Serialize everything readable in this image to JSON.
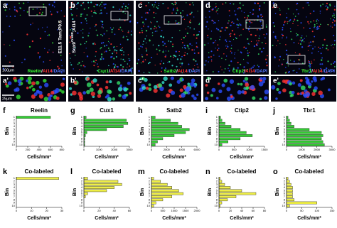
{
  "images": [
    {
      "label": "a",
      "zoom_label": "a'",
      "stain": [
        "Reelin",
        "/",
        "Ai14",
        "/DAPI"
      ],
      "stain_colors": [
        "#33ff33",
        "#ffffff",
        "#ff3333",
        "#5577ff"
      ],
      "dot_colors": [
        "#2a4dff",
        "#2a4dff",
        "#33dd33",
        "#ff3333"
      ]
    },
    {
      "label": "b",
      "zoom_label": "b'",
      "stain": [
        "Cux1",
        "/",
        "Ai14",
        "/DAPI"
      ],
      "stain_colors": [
        "#33ff33",
        "#ffffff",
        "#ff3333",
        "#5577ff"
      ],
      "dot_colors": [
        "#2a4dff",
        "#33dd66",
        "#33ddcc",
        "#ff3333"
      ]
    },
    {
      "label": "c",
      "zoom_label": "c'",
      "stain": [
        "Satb2",
        "/",
        "Ai14",
        "/DAPI"
      ],
      "stain_colors": [
        "#33ff33",
        "#ffffff",
        "#ff3333",
        "#5577ff"
      ],
      "dot_colors": [
        "#2a4dff",
        "#33dd66",
        "#33ddcc",
        "#ff3333"
      ]
    },
    {
      "label": "d",
      "zoom_label": "d'",
      "stain": [
        "Ctip2",
        "/",
        "Ai14",
        "/DAPI"
      ],
      "stain_colors": [
        "#33ff33",
        "#ffffff",
        "#ff3333",
        "#5577ff"
      ],
      "dot_colors": [
        "#2a4dff",
        "#2a4dff",
        "#33dd66",
        "#ff3333"
      ]
    },
    {
      "label": "e",
      "zoom_label": "e'",
      "stain": [
        "Tbr1",
        "/",
        "Ai14",
        "/DAPI"
      ],
      "stain_colors": [
        "#33ff33",
        "#ffffff",
        "#ff3333",
        "#5577ff"
      ],
      "dot_colors": [
        "#2a4dff",
        "#2a4dff",
        "#33dd66",
        "#ff3333"
      ]
    }
  ],
  "side_label_age": "E11.5 Tam;P0.5",
  "side_label_line": [
    "Sox9",
    "CreER",
    ";Ai14"
  ],
  "scale_bar_top": "100µm",
  "scale_bar_zoom": "25µm",
  "chart_data": [
    {
      "type": "bar",
      "panel_label": "f",
      "title": "Reelin",
      "xlabel": "Cells/mm²",
      "ylabel": "Bin",
      "color": "#33cc33",
      "categories": [
        "1",
        "2",
        "3",
        "4",
        "5",
        "6",
        "7",
        "8",
        "9",
        "10"
      ],
      "values": [
        600,
        0,
        0,
        0,
        0,
        0,
        0,
        0,
        0,
        0
      ],
      "xlim": [
        0,
        800
      ],
      "xticks": [
        0,
        200,
        400,
        600,
        800
      ]
    },
    {
      "type": "bar",
      "panel_label": "g",
      "title": "Cux1",
      "xlabel": "Cells/mm²",
      "ylabel": "Bin",
      "color": "#33cc33",
      "categories": [
        "1",
        "2",
        "3",
        "4",
        "5",
        "6",
        "7",
        "8",
        "9",
        "10"
      ],
      "values": [
        150,
        2800,
        2900,
        2600,
        1500,
        200,
        100,
        50,
        50,
        50
      ],
      "xlim": [
        0,
        3000
      ],
      "xticks": [
        0,
        1000,
        2000,
        3000
      ]
    },
    {
      "type": "bar",
      "panel_label": "h",
      "title": "Satb2",
      "xlabel": "Cells/mm²",
      "ylabel": "Bin",
      "color": "#33cc33",
      "categories": [
        "1",
        "2",
        "3",
        "4",
        "5",
        "6",
        "7",
        "8",
        "9",
        "10"
      ],
      "values": [
        500,
        2500,
        3500,
        4000,
        5000,
        4500,
        3000,
        1500,
        800,
        500
      ],
      "xlim": [
        0,
        6000
      ],
      "xticks": [
        0,
        2000,
        4000,
        6000
      ]
    },
    {
      "type": "bar",
      "panel_label": "i",
      "title": "Ctip2",
      "xlabel": "Cells/mm²",
      "ylabel": "Bin",
      "color": "#33cc33",
      "categories": [
        "1",
        "2",
        "3",
        "4",
        "5",
        "6",
        "7",
        "8",
        "9",
        "10"
      ],
      "values": [
        50,
        100,
        200,
        400,
        700,
        900,
        1100,
        700,
        300,
        100
      ],
      "xlim": [
        0,
        1500
      ],
      "xticks": [
        0,
        500,
        1000,
        1500
      ]
    },
    {
      "type": "bar",
      "panel_label": "j",
      "title": "Tbr1",
      "xlabel": "Cells/mm²",
      "ylabel": "Bin",
      "color": "#33cc33",
      "categories": [
        "1",
        "2",
        "3",
        "4",
        "5",
        "6",
        "7",
        "8",
        "9",
        "10"
      ],
      "values": [
        100,
        200,
        300,
        500,
        1500,
        2300,
        2400,
        2300,
        2400,
        2500
      ],
      "xlim": [
        0,
        3000
      ],
      "xticks": [
        0,
        1000,
        2000,
        3000
      ]
    },
    {
      "type": "bar",
      "panel_label": "k",
      "title": "Co-labeled",
      "xlabel": "Cells/mm²",
      "ylabel": "Bin",
      "color": "#eeee44",
      "categories": [
        "1",
        "2",
        "3",
        "4",
        "5",
        "6",
        "7",
        "8",
        "9",
        "10"
      ],
      "values": [
        28,
        0,
        0,
        0,
        0,
        0,
        0,
        0,
        0,
        0
      ],
      "xlim": [
        0,
        30
      ],
      "xticks": [
        0,
        10,
        20,
        30
      ]
    },
    {
      "type": "bar",
      "panel_label": "l",
      "title": "Co-labeled",
      "xlabel": "Cells/mm²",
      "ylabel": "Bin",
      "color": "#eeee44",
      "categories": [
        "1",
        "2",
        "3",
        "4",
        "5",
        "6",
        "7",
        "8",
        "9",
        "10"
      ],
      "values": [
        5,
        45,
        50,
        40,
        30,
        5,
        2,
        0,
        0,
        0
      ],
      "xlim": [
        0,
        60
      ],
      "xticks": [
        0,
        20,
        40,
        60
      ]
    },
    {
      "type": "bar",
      "panel_label": "m",
      "title": "Co-labeled",
      "xlabel": "Cells/mm²",
      "ylabel": "Bin",
      "color": "#eeee44",
      "categories": [
        "1",
        "2",
        "3",
        "4",
        "5",
        "6",
        "7",
        "8",
        "9",
        "10"
      ],
      "values": [
        100,
        400,
        700,
        900,
        1200,
        1400,
        900,
        500,
        200,
        100
      ],
      "xlim": [
        0,
        2000
      ],
      "xticks": [
        0,
        500,
        1000,
        1500,
        2000
      ]
    },
    {
      "type": "bar",
      "panel_label": "n",
      "title": "Co-labeled",
      "xlabel": "Cells/mm²",
      "ylabel": "Bin",
      "color": "#eeee44",
      "categories": [
        "1",
        "2",
        "3",
        "4",
        "5",
        "6",
        "7",
        "8",
        "9",
        "10"
      ],
      "values": [
        2,
        5,
        10,
        20,
        40,
        65,
        30,
        15,
        5,
        2
      ],
      "xlim": [
        0,
        80
      ],
      "xticks": [
        0,
        20,
        40,
        60,
        80
      ]
    },
    {
      "type": "bar",
      "panel_label": "o",
      "title": "Co-labeled",
      "xlabel": "Cells/mm²",
      "ylabel": "Bin",
      "color": "#eeee44",
      "categories": [
        "1",
        "2",
        "3",
        "4",
        "5",
        "6",
        "7",
        "8",
        "9",
        "10"
      ],
      "values": [
        5,
        10,
        15,
        20,
        20,
        20,
        20,
        25,
        100,
        10
      ],
      "xlim": [
        0,
        150
      ],
      "xticks": [
        0,
        50,
        100,
        150
      ]
    }
  ]
}
